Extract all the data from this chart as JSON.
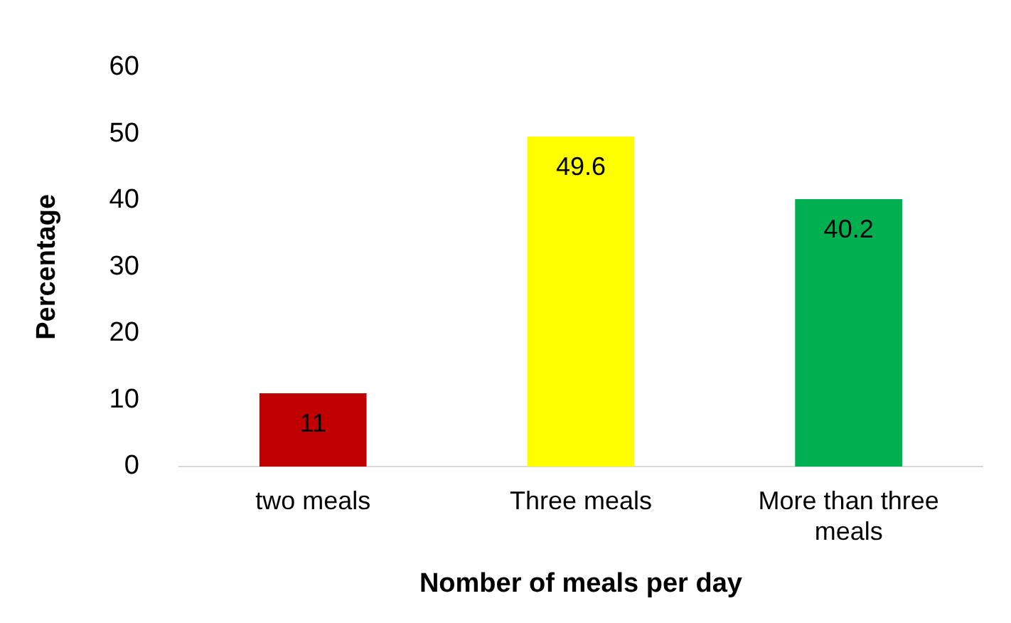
{
  "chart_data": {
    "type": "bar",
    "xlabel": "Nomber of meals per day",
    "ylabel": "Percentage",
    "categories": [
      "two meals",
      "Three meals",
      "More than three meals"
    ],
    "values": [
      11,
      49.6,
      40.2
    ],
    "colors": [
      "#c00000",
      "#ffff00",
      "#00b050"
    ],
    "ylim": [
      0,
      60
    ],
    "yticks": [
      0,
      10,
      20,
      30,
      40,
      50,
      60
    ],
    "grid": false,
    "legend": false,
    "data_labels": true
  }
}
